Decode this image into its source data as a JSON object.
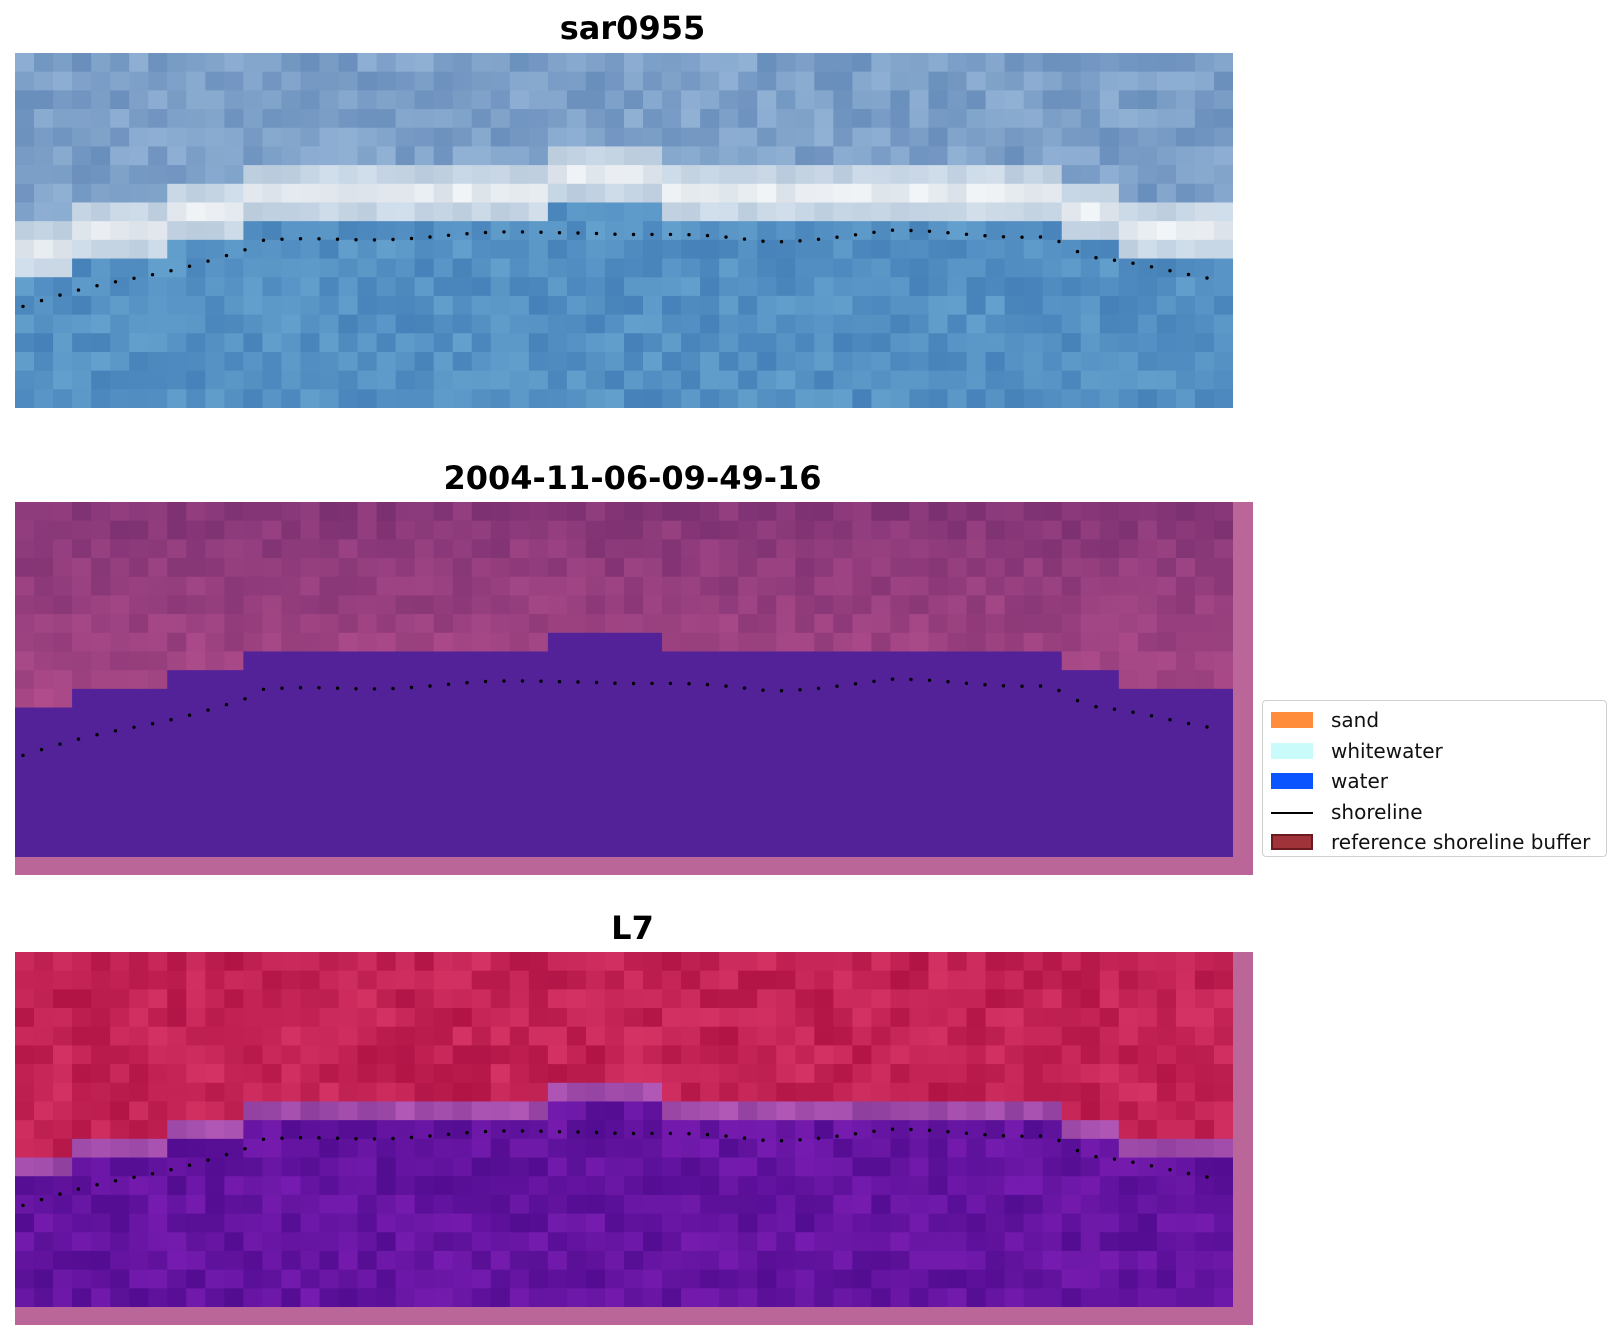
{
  "panels": [
    {
      "id": "rgb",
      "title": "sar0955",
      "palette": "rgb"
    },
    {
      "id": "classified",
      "title": "2004-11-06-09-49-16",
      "palette": "classified"
    },
    {
      "id": "mndwi",
      "title": "L7",
      "palette": "index"
    }
  ],
  "legend": {
    "items": [
      {
        "label": "sand",
        "kind": "patch",
        "color": "#ff8c3a"
      },
      {
        "label": "whitewater",
        "kind": "patch",
        "color": "#c8fbfa"
      },
      {
        "label": "water",
        "kind": "patch",
        "color": "#0a55ff"
      },
      {
        "label": "shoreline",
        "kind": "line",
        "color": "#000000"
      },
      {
        "label": "reference shoreline buffer",
        "kind": "patch",
        "color": "#a0333a",
        "border": "#6b1a1f"
      }
    ]
  },
  "colors": {
    "buffer_pink": "#bb6699",
    "classified_water": "#532299",
    "shoreline_dots": "#000000"
  },
  "image_grid": {
    "cols": 64,
    "rows": 19
  }
}
